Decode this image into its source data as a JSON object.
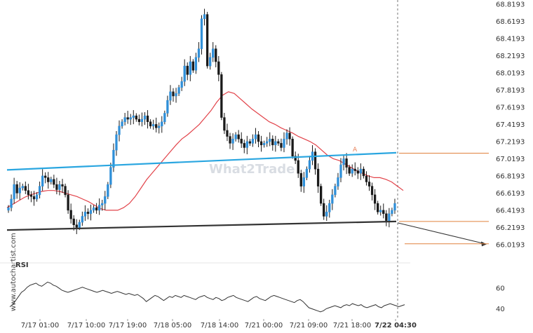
{
  "chart_data": {
    "type": "candlestick",
    "watermark_text": "What2Trade",
    "side_label": "www.autochartist.com",
    "pattern_mark": "A",
    "y_ticks": [
      "68.8193",
      "68.6193",
      "68.4193",
      "68.2193",
      "68.0193",
      "67.8193",
      "67.6193",
      "67.4193",
      "67.2193",
      "67.0193",
      "66.8193",
      "66.6193",
      "66.4193",
      "66.2193",
      "66.0193"
    ],
    "ylim": [
      66.0,
      68.85
    ],
    "x_ticks": [
      "7/17 01:00",
      "7/17 10:00",
      "7/17 19:00",
      "7/18 05:00",
      "7/18 14:00",
      "7/21 00:00",
      "7/21 09:00",
      "7/21 18:00",
      "7/22 04:30"
    ],
    "rsi": {
      "title": "RSI",
      "ticks": [
        "60",
        "40"
      ],
      "ylim": [
        30,
        80
      ]
    },
    "closes": [
      66.45,
      66.55,
      66.72,
      66.62,
      66.68,
      66.7,
      66.65,
      66.6,
      66.58,
      66.55,
      66.6,
      66.7,
      66.82,
      66.8,
      66.75,
      66.78,
      66.72,
      66.66,
      66.72,
      66.7,
      66.6,
      66.42,
      66.32,
      66.25,
      66.22,
      66.28,
      66.35,
      66.4,
      66.38,
      66.42,
      66.45,
      66.42,
      66.48,
      66.5,
      66.58,
      66.72,
      66.92,
      67.12,
      67.3,
      67.4,
      67.45,
      67.5,
      67.48,
      67.5,
      67.52,
      67.48,
      67.45,
      67.48,
      67.52,
      67.45,
      67.4,
      67.42,
      67.38,
      67.4,
      67.45,
      67.55,
      67.7,
      67.8,
      67.75,
      67.78,
      67.85,
      67.92,
      68.1,
      68.0,
      68.15,
      68.05,
      68.2,
      68.3,
      68.65,
      68.7,
      68.1,
      68.2,
      68.3,
      68.15,
      68.0,
      67.5,
      67.35,
      67.28,
      67.2,
      67.25,
      67.3,
      67.25,
      67.2,
      67.15,
      67.22,
      67.2,
      67.25,
      67.3,
      67.22,
      67.18,
      67.2,
      67.22,
      67.25,
      67.18,
      67.22,
      67.2,
      67.15,
      67.25,
      67.32,
      67.25,
      67.05,
      67.0,
      66.85,
      66.7,
      66.8,
      66.9,
      67.0,
      67.1,
      66.9,
      66.7,
      66.5,
      66.35,
      66.4,
      66.5,
      66.6,
      66.7,
      66.8,
      66.95,
      67.02,
      66.92,
      66.85,
      66.9,
      66.88,
      66.85,
      66.9,
      66.82,
      66.75,
      66.7,
      66.6,
      66.5,
      66.4,
      66.42,
      66.38,
      66.3,
      66.38,
      66.42,
      66.5
    ],
    "moving_average": [
      66.45,
      66.49,
      66.53,
      66.57,
      66.6,
      66.62,
      66.64,
      66.65,
      66.65,
      66.64,
      66.62,
      66.6,
      66.58,
      66.55,
      66.52,
      66.48,
      66.44,
      66.42,
      66.42,
      66.42,
      66.45,
      66.5,
      66.58,
      66.68,
      66.78,
      66.86,
      66.94,
      67.02,
      67.1,
      67.18,
      67.25,
      67.3,
      67.36,
      67.42,
      67.5,
      67.58,
      67.68,
      67.76,
      67.8,
      67.78,
      67.72,
      67.66,
      67.6,
      67.55,
      67.5,
      67.45,
      67.42,
      67.38,
      67.35,
      67.32,
      67.28,
      67.25,
      67.22,
      67.18,
      67.12,
      67.06,
      67.02,
      67.0,
      66.96,
      66.92,
      66.88,
      66.85,
      66.82,
      66.8,
      66.8,
      66.78,
      66.75,
      66.7,
      66.65
    ],
    "resistance_line": {
      "start": 66.89,
      "end": 67.09
    },
    "support_line": {
      "start": 66.19,
      "end": 66.29
    },
    "projection_end": 66.02,
    "target_levels": [
      67.085,
      66.29,
      66.03
    ],
    "rsi_values": [
      42,
      44,
      48,
      52,
      56,
      58,
      61,
      63,
      64,
      65,
      63,
      62,
      64,
      66,
      65,
      63,
      62,
      60,
      58,
      57,
      56,
      57,
      58,
      59,
      60,
      61,
      60,
      59,
      58,
      57,
      56,
      57,
      58,
      57,
      56,
      55,
      56,
      57,
      56,
      55,
      54,
      55,
      54,
      53,
      54,
      52,
      50,
      47,
      49,
      51,
      53,
      52,
      50,
      48,
      50,
      52,
      51,
      53,
      52,
      51,
      53,
      52,
      51,
      50,
      49,
      51,
      52,
      53,
      51,
      50,
      49,
      51,
      50,
      48,
      49,
      51,
      52,
      53,
      51,
      50,
      49,
      48,
      47,
      49,
      51,
      52,
      50,
      49,
      48,
      50,
      52,
      53,
      52,
      51,
      50,
      49,
      48,
      47,
      46,
      48,
      49,
      47,
      44,
      41,
      40,
      39,
      38,
      37,
      38,
      40,
      41,
      42,
      43,
      42,
      41,
      43,
      44,
      43,
      45,
      44,
      43,
      44,
      42,
      41,
      42,
      43,
      44,
      42,
      41,
      43,
      44,
      45,
      44,
      43,
      42,
      43,
      44
    ]
  }
}
